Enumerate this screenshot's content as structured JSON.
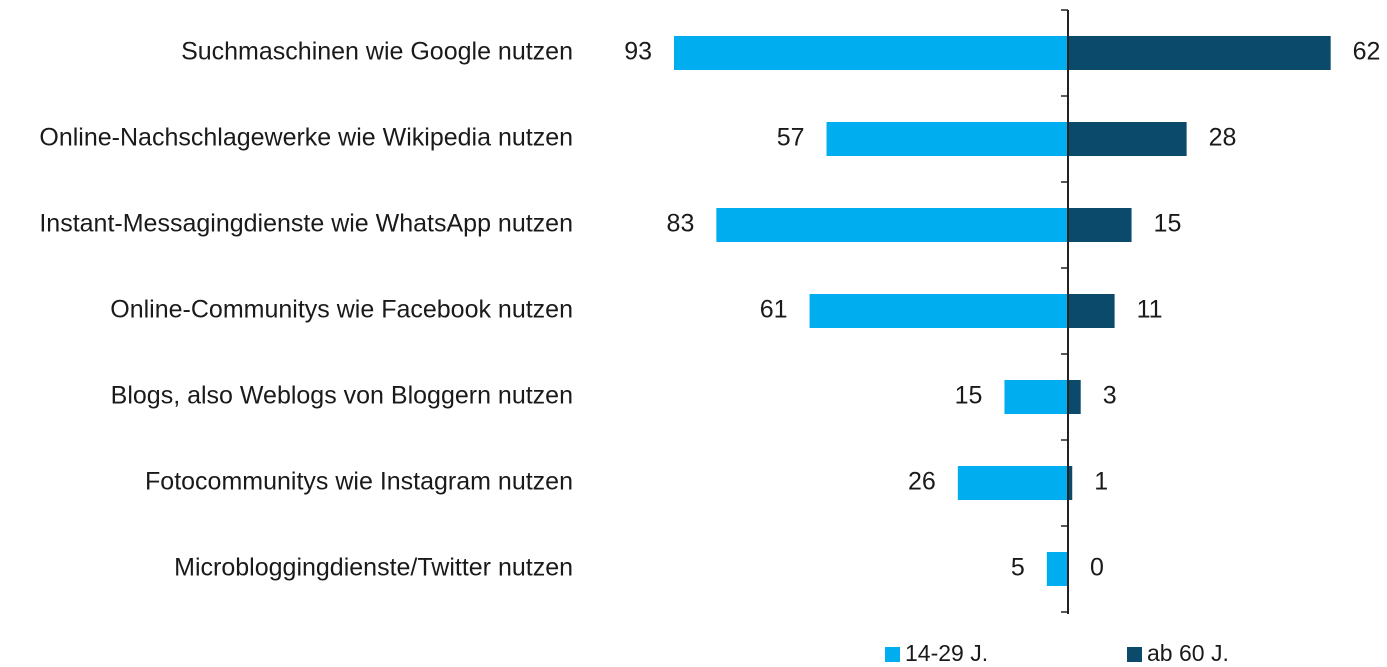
{
  "chart_data": {
    "type": "bar",
    "orientation": "diverging",
    "categories": [
      "Suchmaschinen wie Google nutzen",
      "Online-Nachschlagewerke wie Wikipedia nutzen",
      "Instant-Messagingdienste wie WhatsApp nutzen",
      "Online-Communitys wie Facebook nutzen",
      "Blogs, also Weblogs von Bloggern nutzen",
      "Fotocommunitys wie Instagram nutzen",
      "Microbloggingdienste/Twitter nutzen"
    ],
    "series": [
      {
        "name": "14-29 J.",
        "color": "#00adef",
        "values": [
          93,
          57,
          83,
          61,
          15,
          26,
          5
        ]
      },
      {
        "name": "ab 60 J.",
        "color": "#0b4a6b",
        "values": [
          62,
          28,
          15,
          11,
          3,
          1,
          0
        ]
      }
    ]
  }
}
